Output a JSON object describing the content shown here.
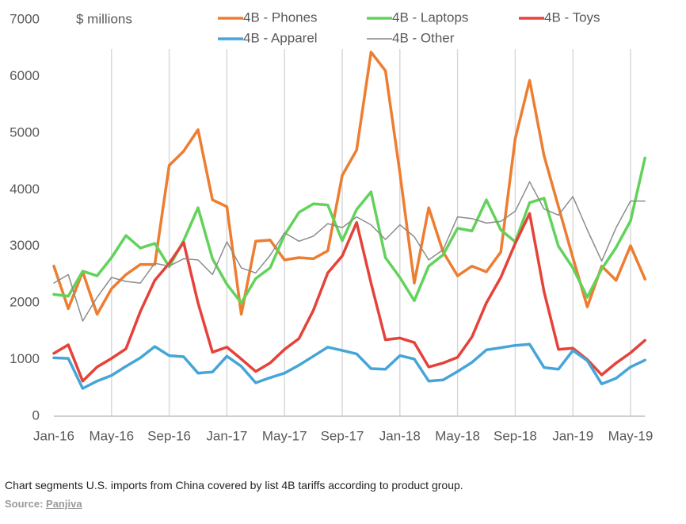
{
  "chart_data": {
    "type": "line",
    "y_label": "$ millions",
    "categories": [
      "Jan-16",
      null,
      null,
      null,
      "May-16",
      null,
      null,
      null,
      "Sep-16",
      null,
      null,
      null,
      "Jan-17",
      null,
      null,
      null,
      "May-17",
      null,
      null,
      null,
      "Sep-17",
      null,
      null,
      null,
      "Jan-18",
      null,
      null,
      null,
      "May-18",
      null,
      null,
      null,
      "Sep-18",
      null,
      null,
      null,
      "Jan-19",
      null,
      null,
      null,
      "May-19",
      null
    ],
    "series": [
      {
        "name": "4B - Phones",
        "color": "#ed7d31",
        "width": 3.5,
        "values": [
          2650,
          1900,
          2550,
          1800,
          2250,
          2500,
          2680,
          2680,
          4430,
          4680,
          5060,
          3820,
          3700,
          1800,
          3090,
          3110,
          2760,
          2800,
          2780,
          2920,
          4250,
          4700,
          6430,
          6100,
          4300,
          2350,
          3680,
          2900,
          2480,
          2650,
          2550,
          2900,
          4900,
          5930,
          4600,
          3700,
          2800,
          1930,
          2650,
          2400,
          3010,
          2420
        ]
      },
      {
        "name": "4B - Laptops",
        "color": "#62d35a",
        "width": 3.5,
        "values": [
          2150,
          2120,
          2560,
          2480,
          2800,
          3190,
          2970,
          3050,
          2640,
          3100,
          3680,
          2780,
          2330,
          2000,
          2430,
          2620,
          3200,
          3600,
          3750,
          3730,
          3100,
          3650,
          3960,
          2800,
          2450,
          2040,
          2650,
          2850,
          3320,
          3270,
          3820,
          3290,
          3080,
          3770,
          3850,
          3000,
          2620,
          2100,
          2600,
          2980,
          3450,
          4560
        ]
      },
      {
        "name": "4B - Toys",
        "color": "#e5423a",
        "width": 3.5,
        "values": [
          1110,
          1260,
          620,
          870,
          1020,
          1190,
          1850,
          2400,
          2700,
          3070,
          2000,
          1130,
          1220,
          1010,
          790,
          940,
          1180,
          1370,
          1870,
          2530,
          2830,
          3420,
          2350,
          1350,
          1380,
          1300,
          870,
          940,
          1040,
          1400,
          2000,
          2450,
          3050,
          3580,
          2200,
          1180,
          1200,
          1000,
          730,
          940,
          1120,
          1340
        ]
      },
      {
        "name": "4B - Apparel",
        "color": "#46a5d8",
        "width": 3.5,
        "values": [
          1030,
          1020,
          490,
          620,
          720,
          880,
          1030,
          1230,
          1070,
          1050,
          760,
          780,
          1060,
          880,
          590,
          680,
          760,
          900,
          1060,
          1220,
          1160,
          1100,
          840,
          830,
          1070,
          1010,
          620,
          640,
          790,
          950,
          1170,
          1210,
          1250,
          1270,
          860,
          830,
          1160,
          980,
          570,
          670,
          870,
          990
        ]
      },
      {
        "name": "4B - Other",
        "color": "#8c8c8c",
        "width": 1.5,
        "values": [
          2350,
          2500,
          1680,
          2100,
          2450,
          2380,
          2350,
          2700,
          2650,
          2780,
          2760,
          2500,
          3080,
          2620,
          2530,
          2840,
          3240,
          3090,
          3180,
          3400,
          3330,
          3520,
          3380,
          3120,
          3380,
          3170,
          2760,
          2940,
          3520,
          3490,
          3410,
          3440,
          3620,
          4140,
          3660,
          3550,
          3880,
          3290,
          2740,
          3330,
          3800,
          3800
        ]
      }
    ],
    "ylim": [
      0,
      7000
    ],
    "yticks": [
      0,
      1000,
      2000,
      3000,
      4000,
      5000,
      6000,
      7000
    ],
    "grid": "x"
  },
  "caption": "Chart segments U.S. imports from China covered by list 4B tariffs according to product group.",
  "source_label": "Source:",
  "source": "Panjiva"
}
